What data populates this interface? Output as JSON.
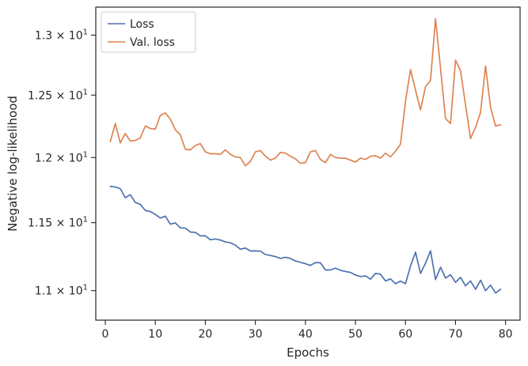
{
  "chart_data": {
    "type": "line",
    "xlabel": "Epochs",
    "ylabel": "Negative log-likelihood",
    "xlim": [
      -1.9,
      82.9
    ],
    "ylim": [
      10.79,
      13.24
    ],
    "y_scale": "log",
    "grid": false,
    "legend_placement": "top-left",
    "x_ticks": [
      {
        "value": 0,
        "label": "0"
      },
      {
        "value": 10,
        "label": "10"
      },
      {
        "value": 20,
        "label": "20"
      },
      {
        "value": 30,
        "label": "30"
      },
      {
        "value": 40,
        "label": "40"
      },
      {
        "value": 50,
        "label": "50"
      },
      {
        "value": 60,
        "label": "60"
      },
      {
        "value": 70,
        "label": "70"
      },
      {
        "value": 80,
        "label": "80"
      }
    ],
    "y_ticks": [
      {
        "value": 11.0,
        "mantissa": "1.1",
        "base": "10",
        "exponent": "1"
      },
      {
        "value": 11.5,
        "mantissa": "1.15",
        "base": "10",
        "exponent": "1"
      },
      {
        "value": 12.0,
        "mantissa": "1.2",
        "base": "10",
        "exponent": "1"
      },
      {
        "value": 12.5,
        "mantissa": "1.25",
        "base": "10",
        "exponent": "1"
      },
      {
        "value": 13.0,
        "mantissa": "1.3",
        "base": "10",
        "exponent": "1"
      }
    ],
    "x": [
      1,
      2,
      3,
      4,
      5,
      6,
      7,
      8,
      9,
      10,
      11,
      12,
      13,
      14,
      15,
      16,
      17,
      18,
      19,
      20,
      21,
      22,
      23,
      24,
      25,
      26,
      27,
      28,
      29,
      30,
      31,
      32,
      33,
      34,
      35,
      36,
      37,
      38,
      39,
      40,
      41,
      42,
      43,
      44,
      45,
      46,
      47,
      48,
      49,
      50,
      51,
      52,
      53,
      54,
      55,
      56,
      57,
      58,
      59,
      60,
      61,
      62,
      63,
      64,
      65,
      66,
      67,
      68,
      69,
      70,
      71,
      72,
      73,
      74,
      75,
      76,
      77,
      78,
      79
    ],
    "series": [
      {
        "name": "Loss",
        "color": "#4c72b0",
        "values": [
          11.776,
          11.771,
          11.758,
          11.689,
          11.712,
          11.653,
          11.638,
          11.592,
          11.584,
          11.562,
          11.535,
          11.549,
          11.489,
          11.498,
          11.461,
          11.459,
          11.43,
          11.427,
          11.401,
          11.402,
          11.372,
          11.378,
          11.37,
          11.356,
          11.35,
          11.332,
          11.302,
          11.311,
          11.289,
          11.29,
          11.288,
          11.263,
          11.256,
          11.248,
          11.234,
          11.243,
          11.234,
          11.216,
          11.206,
          11.196,
          11.183,
          11.204,
          11.202,
          11.15,
          11.15,
          11.163,
          11.147,
          11.139,
          11.132,
          11.113,
          11.102,
          11.107,
          11.083,
          11.125,
          11.119,
          11.07,
          11.085,
          11.05,
          11.069,
          11.05,
          11.179,
          11.28,
          11.125,
          11.2,
          11.29,
          11.08,
          11.17,
          11.091,
          11.115,
          11.06,
          11.096,
          11.035,
          11.07,
          11.01,
          11.075,
          11.0,
          11.04,
          10.983,
          11.01
        ]
      },
      {
        "name": "Val. loss",
        "color": "#dd8452",
        "values": [
          12.125,
          12.27,
          12.115,
          12.19,
          12.13,
          12.135,
          12.155,
          12.25,
          12.23,
          12.225,
          12.335,
          12.355,
          12.305,
          12.22,
          12.18,
          12.065,
          12.06,
          12.095,
          12.11,
          12.045,
          12.03,
          12.03,
          12.025,
          12.06,
          12.025,
          12.005,
          12.0,
          11.935,
          11.97,
          12.045,
          12.055,
          12.01,
          11.98,
          11.995,
          12.04,
          12.035,
          12.01,
          11.99,
          11.955,
          11.96,
          12.045,
          12.055,
          11.985,
          11.96,
          12.025,
          12.0,
          11.995,
          11.995,
          11.98,
          11.965,
          11.995,
          11.985,
          12.01,
          12.015,
          11.995,
          12.035,
          12.005,
          12.05,
          12.105,
          12.45,
          12.71,
          12.54,
          12.38,
          12.57,
          12.62,
          13.14,
          12.72,
          12.31,
          12.27,
          12.79,
          12.7,
          12.42,
          12.15,
          12.24,
          12.36,
          12.74,
          12.4,
          12.25,
          12.26
        ]
      }
    ]
  }
}
